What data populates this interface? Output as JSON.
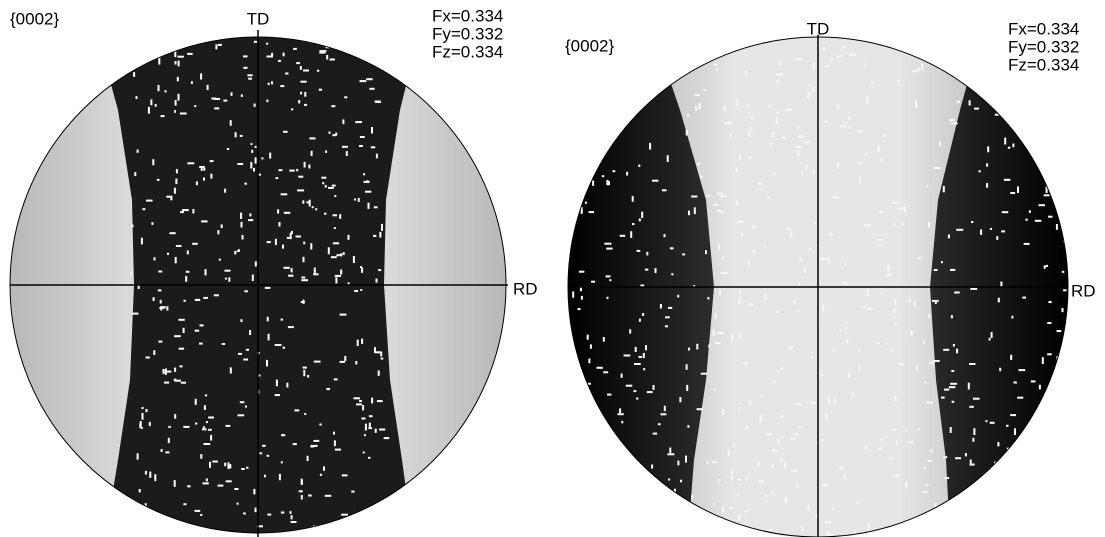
{
  "panels": [
    {
      "plane": "{0002}",
      "top_label": "TD",
      "right_label": "RD",
      "fractions": [
        "Fx=0.334",
        "Fy=0.332",
        "Fz=0.334"
      ]
    },
    {
      "plane": "{0002}",
      "top_label": "TD",
      "right_label": "RD",
      "fractions": [
        "Fx=0.334",
        "Fy=0.332",
        "Fz=0.334"
      ]
    }
  ]
}
